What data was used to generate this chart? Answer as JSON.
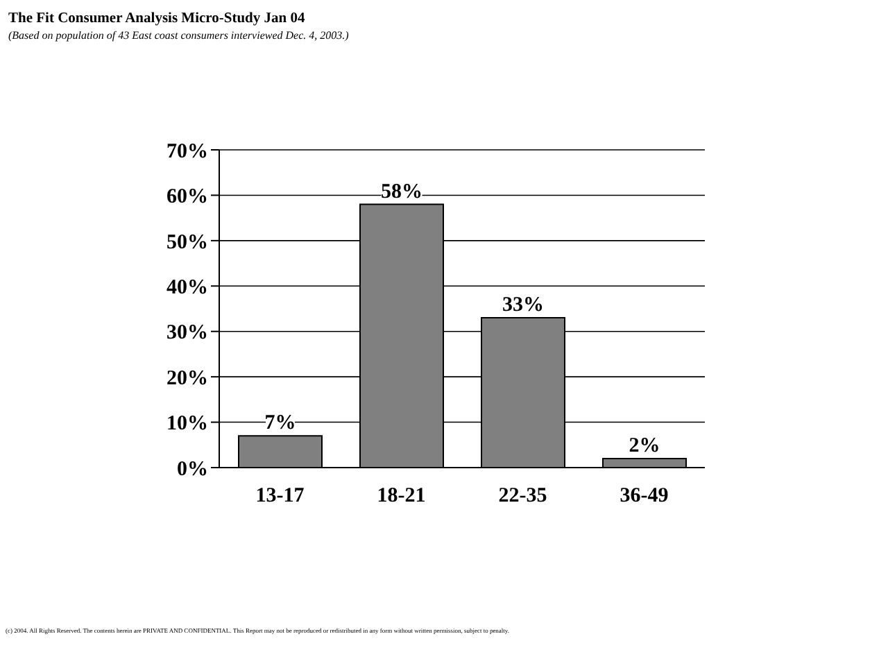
{
  "chart_data": {
    "type": "bar",
    "title": "The Fit Consumer Analysis Micro-Study Jan 04",
    "subtitle": "(Based on population of 43 East coast consumers interviewed Dec. 4, 2003.)",
    "categories": [
      "13-17",
      "18-21",
      "22-35",
      "36-49"
    ],
    "values": [
      7,
      58,
      33,
      2
    ],
    "color": "#808080",
    "value_labels": [
      "7%",
      "58%",
      "33%",
      "2%"
    ],
    "ylim": [
      0,
      70
    ],
    "yticks": [
      {
        "value": 0,
        "label": "0%"
      },
      {
        "value": 10,
        "label": "10%"
      },
      {
        "value": 20,
        "label": "20%"
      },
      {
        "value": 30,
        "label": "30%"
      },
      {
        "value": 40,
        "label": "40%"
      },
      {
        "value": 50,
        "label": "50%"
      },
      {
        "value": 60,
        "label": "60%"
      },
      {
        "value": 70,
        "label": "70%"
      }
    ],
    "grid": "y",
    "legend": false,
    "annotations": [
      "(c) 2004. All Rights Reserved. The contents herein are PRIVATE AND CONFIDENTIAL. This Report may not be reproduced or redistributed in any form without written permission, subject to penalty."
    ]
  }
}
